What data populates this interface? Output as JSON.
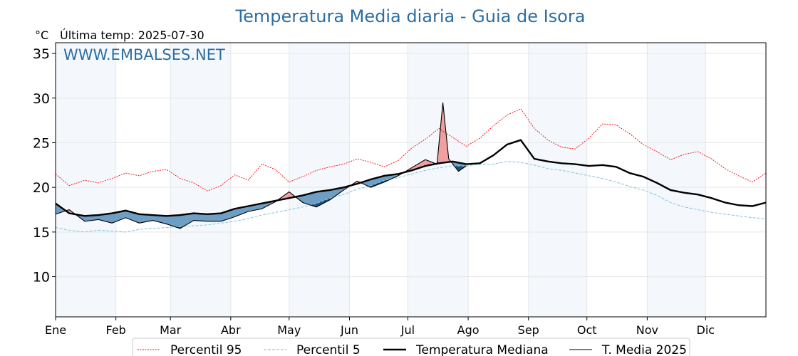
{
  "chart_data": {
    "type": "line",
    "title": "Temperatura Media diaria - Guia de Isora",
    "watermark": "WWW.EMBALSES.NET",
    "unit_label": "°C",
    "last_temp_label": "Última temp: 2025-07-30",
    "ylim": [
      5.5,
      36.2
    ],
    "xlim": [
      0,
      365
    ],
    "y_ticks": [
      10,
      15,
      20,
      25,
      30,
      35
    ],
    "x_ticks": [
      {
        "label": "Ene",
        "day": 0
      },
      {
        "label": "Feb",
        "day": 31
      },
      {
        "label": "Mar",
        "day": 59
      },
      {
        "label": "Abr",
        "day": 90
      },
      {
        "label": "May",
        "day": 120
      },
      {
        "label": "Jun",
        "day": 151
      },
      {
        "label": "Jul",
        "day": 181
      },
      {
        "label": "Ago",
        "day": 212
      },
      {
        "label": "Sep",
        "day": 243
      },
      {
        "label": "Oct",
        "day": 273
      },
      {
        "label": "Nov",
        "day": 304
      },
      {
        "label": "Dic",
        "day": 334
      }
    ],
    "grid": true,
    "legend_placement": "bottom-center",
    "colors": {
      "p95": "#ff0000",
      "p5": "#8ec8dc",
      "median": "#000000",
      "current": "#000000",
      "above_fill": "#f0a0a0",
      "below_fill": "#6f9ec4",
      "deep_below_fill": "#1f4f7a",
      "month_band": "#f4f8fc",
      "title_color": "#2b6ea3"
    },
    "legend": [
      "Percentil 95",
      "Percentil 5",
      "Temperatura Mediana",
      "T. Media 2025"
    ],
    "series": [
      {
        "name": "Percentil 95",
        "style": "dotted-red",
        "x": [
          0,
          7,
          15,
          22,
          29,
          36,
          43,
          50,
          57,
          64,
          71,
          78,
          85,
          92,
          99,
          106,
          113,
          120,
          127,
          134,
          141,
          148,
          155,
          162,
          169,
          176,
          183,
          190,
          197,
          204,
          211,
          218,
          225,
          232,
          239,
          246,
          253,
          260,
          267,
          274,
          281,
          288,
          295,
          302,
          309,
          316,
          323,
          330,
          337,
          344,
          351,
          358,
          365
        ],
        "y": [
          21.5,
          20.2,
          20.8,
          20.5,
          21.0,
          21.6,
          21.3,
          21.8,
          22.0,
          21.0,
          20.5,
          19.6,
          20.2,
          21.4,
          20.8,
          22.6,
          22.0,
          20.6,
          21.2,
          21.9,
          22.3,
          22.6,
          23.2,
          22.8,
          22.3,
          23.0,
          24.4,
          25.4,
          26.6,
          25.6,
          24.6,
          25.5,
          26.9,
          28.1,
          28.8,
          26.6,
          25.3,
          24.5,
          24.3,
          25.5,
          27.1,
          27.0,
          26.0,
          24.8,
          24.0,
          23.1,
          23.7,
          24.0,
          23.2,
          22.1,
          21.3,
          20.6,
          21.6
        ]
      },
      {
        "name": "Percentil 5",
        "style": "dashed-lightblue",
        "x": [
          0,
          7,
          15,
          22,
          29,
          36,
          43,
          50,
          57,
          64,
          71,
          78,
          85,
          92,
          99,
          106,
          113,
          120,
          127,
          134,
          141,
          148,
          155,
          162,
          169,
          176,
          183,
          190,
          197,
          204,
          211,
          218,
          225,
          232,
          239,
          246,
          253,
          260,
          267,
          274,
          281,
          288,
          295,
          302,
          309,
          316,
          323,
          330,
          337,
          344,
          351,
          358,
          365
        ],
        "y": [
          15.5,
          15.2,
          15.0,
          15.2,
          15.1,
          15.0,
          15.3,
          15.4,
          15.5,
          15.6,
          15.7,
          15.8,
          16.0,
          16.2,
          16.5,
          16.9,
          17.2,
          17.5,
          17.8,
          18.2,
          18.8,
          19.2,
          19.8,
          20.2,
          20.8,
          21.1,
          21.5,
          21.9,
          22.2,
          22.4,
          22.4,
          22.6,
          22.6,
          22.9,
          22.8,
          22.5,
          22.1,
          21.9,
          21.6,
          21.3,
          21.0,
          20.6,
          20.1,
          19.7,
          19.1,
          18.3,
          17.8,
          17.5,
          17.2,
          17.0,
          16.8,
          16.6,
          16.5
        ]
      },
      {
        "name": "Temperatura Mediana",
        "style": "solid-black-thick",
        "x": [
          0,
          7,
          15,
          22,
          29,
          36,
          43,
          50,
          57,
          64,
          71,
          78,
          85,
          92,
          99,
          106,
          113,
          120,
          127,
          134,
          141,
          148,
          155,
          162,
          169,
          176,
          183,
          190,
          197,
          204,
          211,
          218,
          225,
          232,
          239,
          246,
          253,
          260,
          267,
          274,
          281,
          288,
          295,
          302,
          309,
          316,
          323,
          330,
          337,
          344,
          351,
          358,
          365
        ],
        "y": [
          18.2,
          17.1,
          16.8,
          16.9,
          17.1,
          17.4,
          17.0,
          16.9,
          16.8,
          16.9,
          17.1,
          17.0,
          17.1,
          17.6,
          17.9,
          18.2,
          18.5,
          18.8,
          19.1,
          19.5,
          19.7,
          20.0,
          20.4,
          20.9,
          21.3,
          21.5,
          21.9,
          22.4,
          22.7,
          22.9,
          22.6,
          22.7,
          23.6,
          24.8,
          25.3,
          23.2,
          22.9,
          22.7,
          22.6,
          22.4,
          22.5,
          22.3,
          21.6,
          21.2,
          20.5,
          19.7,
          19.4,
          19.2,
          18.8,
          18.3,
          18.0,
          17.9,
          18.3
        ]
      },
      {
        "name": "T. Media 2025",
        "style": "solid-black-thin",
        "x": [
          0,
          7,
          15,
          22,
          29,
          36,
          43,
          50,
          57,
          64,
          71,
          78,
          85,
          92,
          99,
          106,
          113,
          120,
          127,
          134,
          141,
          148,
          155,
          162,
          169,
          176,
          183,
          190,
          196,
          199,
          202,
          207,
          211
        ],
        "y": [
          17.0,
          17.5,
          16.2,
          16.4,
          16.0,
          16.6,
          16.0,
          16.3,
          15.9,
          15.4,
          16.3,
          16.2,
          16.2,
          16.7,
          17.3,
          17.6,
          18.4,
          19.5,
          18.3,
          17.8,
          18.6,
          19.7,
          20.7,
          20.0,
          20.6,
          21.3,
          22.2,
          23.1,
          22.6,
          29.5,
          23.2,
          21.8,
          22.4
        ]
      }
    ]
  }
}
